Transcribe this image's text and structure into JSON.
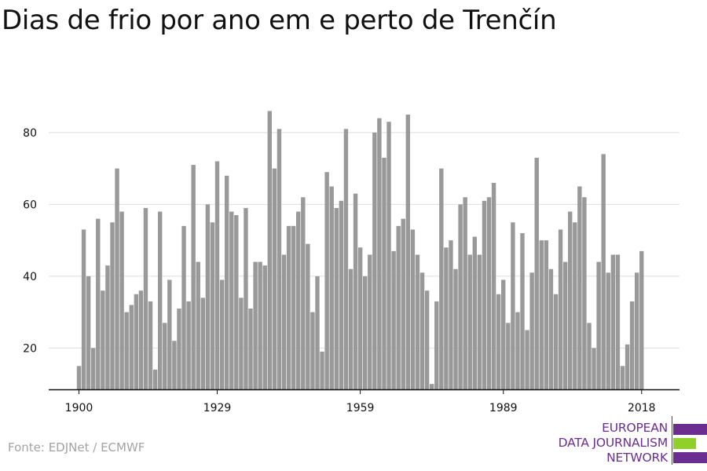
{
  "page": {
    "title": "Dias de frio por ano em e perto de Trenčín",
    "source": "Fonte: EDJNet / ECMWF"
  },
  "logo": {
    "lines": [
      "EUROPEAN",
      "DATA JOURNALISM",
      "NETWORK"
    ],
    "text_color": "#6c2d91",
    "bar_colors": [
      "#6c2d91",
      "#8fd12a",
      "#6c2d91"
    ]
  },
  "chart_data": {
    "type": "bar",
    "title": "Dias de frio por ano em e perto de Trenčín",
    "xlabel": "",
    "ylabel": "",
    "x_ticks": [
      "1900",
      "1929",
      "1959",
      "1989",
      "2018"
    ],
    "y_ticks": [
      20,
      40,
      60,
      80
    ],
    "ylim": [
      8.5,
      88
    ],
    "grid": true,
    "bar_color": "#999999",
    "categories": [
      1900,
      1901,
      1902,
      1903,
      1904,
      1905,
      1906,
      1907,
      1908,
      1909,
      1910,
      1911,
      1912,
      1913,
      1914,
      1915,
      1916,
      1917,
      1918,
      1919,
      1920,
      1921,
      1922,
      1923,
      1924,
      1925,
      1926,
      1927,
      1928,
      1929,
      1930,
      1931,
      1932,
      1933,
      1934,
      1935,
      1936,
      1937,
      1938,
      1939,
      1940,
      1941,
      1942,
      1943,
      1944,
      1945,
      1946,
      1947,
      1948,
      1949,
      1950,
      1951,
      1952,
      1953,
      1954,
      1955,
      1956,
      1957,
      1958,
      1959,
      1960,
      1961,
      1962,
      1963,
      1964,
      1965,
      1966,
      1967,
      1968,
      1969,
      1970,
      1971,
      1972,
      1973,
      1974,
      1975,
      1976,
      1977,
      1978,
      1979,
      1980,
      1981,
      1982,
      1983,
      1984,
      1985,
      1986,
      1987,
      1988,
      1989,
      1990,
      1991,
      1992,
      1993,
      1994,
      1995,
      1996,
      1997,
      1998,
      1999,
      2000,
      2001,
      2002,
      2003,
      2004,
      2005,
      2006,
      2007,
      2008,
      2009,
      2010,
      2011,
      2012,
      2013,
      2014,
      2015,
      2016,
      2017,
      2018
    ],
    "values": [
      15,
      53,
      40,
      20,
      56,
      36,
      43,
      55,
      70,
      58,
      30,
      32,
      35,
      36,
      59,
      33,
      14,
      58,
      27,
      39,
      22,
      31,
      54,
      33,
      71,
      44,
      34,
      60,
      55,
      72,
      39,
      68,
      58,
      57,
      34,
      59,
      31,
      44,
      44,
      43,
      86,
      70,
      81,
      46,
      54,
      54,
      58,
      62,
      49,
      30,
      40,
      19,
      69,
      65,
      59,
      61,
      81,
      42,
      63,
      48,
      40,
      46,
      80,
      84,
      73,
      83,
      47,
      54,
      56,
      85,
      53,
      46,
      41,
      36,
      10,
      33,
      70,
      48,
      50,
      42,
      60,
      62,
      46,
      51,
      46,
      61,
      62,
      66,
      35,
      39,
      27,
      55,
      30,
      52,
      25,
      41,
      73,
      50,
      50,
      42,
      35,
      53,
      44,
      58,
      55,
      65,
      62,
      27,
      20,
      44,
      74,
      41,
      46,
      46,
      15,
      21,
      33,
      41,
      47
    ]
  }
}
